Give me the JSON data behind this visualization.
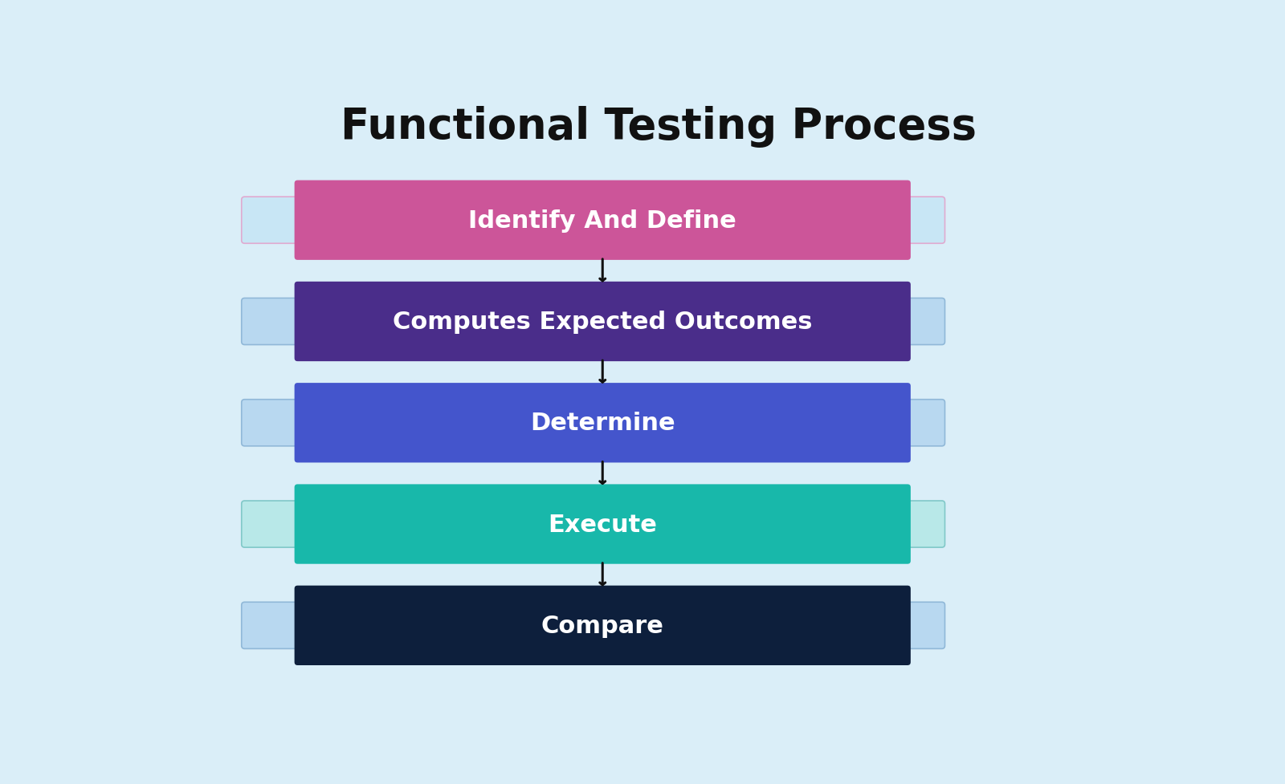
{
  "title": "Functional Testing Process",
  "background_color": "#daeef8",
  "title_fontsize": 38,
  "title_fontweight": "bold",
  "title_color": "#111111",
  "steps": [
    {
      "label": "Identify And Define",
      "box_color": "#cc5599",
      "bg_color": "#c8e6f5",
      "border_color": "#e0aad0"
    },
    {
      "label": "Computes Expected Outcomes",
      "box_color": "#4a2d8a",
      "bg_color": "#b8d8f0",
      "border_color": "#90b8d8"
    },
    {
      "label": "Determine",
      "box_color": "#4455cc",
      "bg_color": "#b8d8f0",
      "border_color": "#90b8d8"
    },
    {
      "label": "Execute",
      "box_color": "#18b8aa",
      "bg_color": "#b8e8e8",
      "border_color": "#80c8c8"
    },
    {
      "label": "Compare",
      "box_color": "#0d1f3c",
      "bg_color": "#b8d8f0",
      "border_color": "#90b8d8"
    }
  ],
  "text_color": "#ffffff",
  "text_fontsize": 22,
  "text_fontweight": "bold",
  "arrow_color": "#111111",
  "figsize": [
    16.0,
    9.78
  ],
  "dpi": 100
}
